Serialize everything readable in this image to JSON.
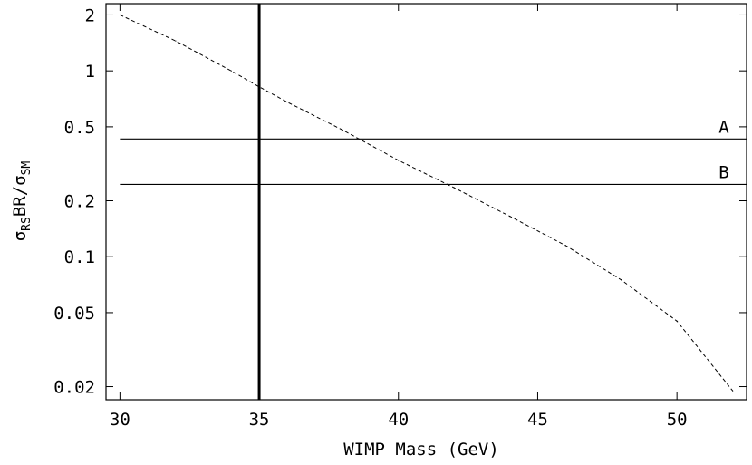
{
  "chart_data": {
    "type": "line",
    "xlabel": "WIMP Mass (GeV)",
    "ylabel": "σRSBR/σSM",
    "ylabel_parts": {
      "sigma": "σ",
      "sub_rs": "RS",
      "mid": "BR/",
      "sub_sm": "SM"
    },
    "y_scale": "log",
    "xlim": [
      29.5,
      52.5
    ],
    "ylim": [
      0.017,
      2.3
    ],
    "grid": false,
    "x_ticks": [
      30,
      35,
      40,
      45,
      50
    ],
    "x_tick_labels": [
      "30",
      "35",
      "40",
      "45",
      "50"
    ],
    "y_ticks": [
      0.02,
      0.05,
      0.1,
      0.2,
      0.5,
      1,
      2
    ],
    "y_tick_labels": [
      "0.02",
      "0.05",
      "0.1",
      "0.2",
      "0.5",
      "1",
      "2"
    ],
    "series": [
      {
        "style": "dashed",
        "x": [
          30,
          32,
          34,
          35,
          36,
          38,
          40,
          42,
          44,
          46,
          48,
          50,
          52
        ],
        "y": [
          2.0,
          1.45,
          1.0,
          0.82,
          0.68,
          0.48,
          0.33,
          0.235,
          0.165,
          0.115,
          0.075,
          0.045,
          0.019
        ]
      }
    ],
    "hlines": [
      {
        "label": "A",
        "y": 0.43
      },
      {
        "label": "B",
        "y": 0.245
      }
    ],
    "vline": {
      "x": 35
    }
  }
}
